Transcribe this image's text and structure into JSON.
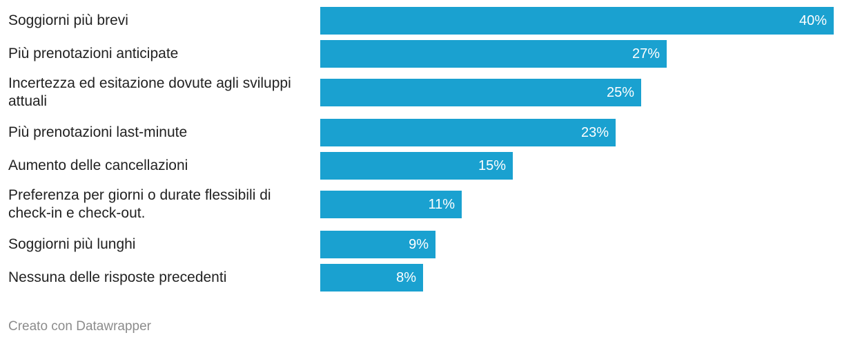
{
  "chart_data": {
    "type": "bar",
    "orientation": "horizontal",
    "categories": [
      "Soggiorni più brevi",
      "Più prenotazioni anticipate",
      "Incertezza ed esitazione dovute agli sviluppi attuali",
      "Più prenotazioni last-minute",
      "Aumento delle cancellazioni",
      "Preferenza per giorni o durate flessibili di check-in e check-out.",
      "Soggiorni più lunghi",
      "Nessuna delle risposte precedenti"
    ],
    "values": [
      40,
      27,
      25,
      23,
      15,
      11,
      9,
      8
    ],
    "value_labels": [
      "40%",
      "27%",
      "25%",
      "23%",
      "15%",
      "11%",
      "9%",
      "8%"
    ],
    "xlim": [
      0,
      40
    ],
    "grid": false,
    "bar_color": "#1aa1d0"
  },
  "footer": {
    "credit": "Creato con Datawrapper"
  }
}
